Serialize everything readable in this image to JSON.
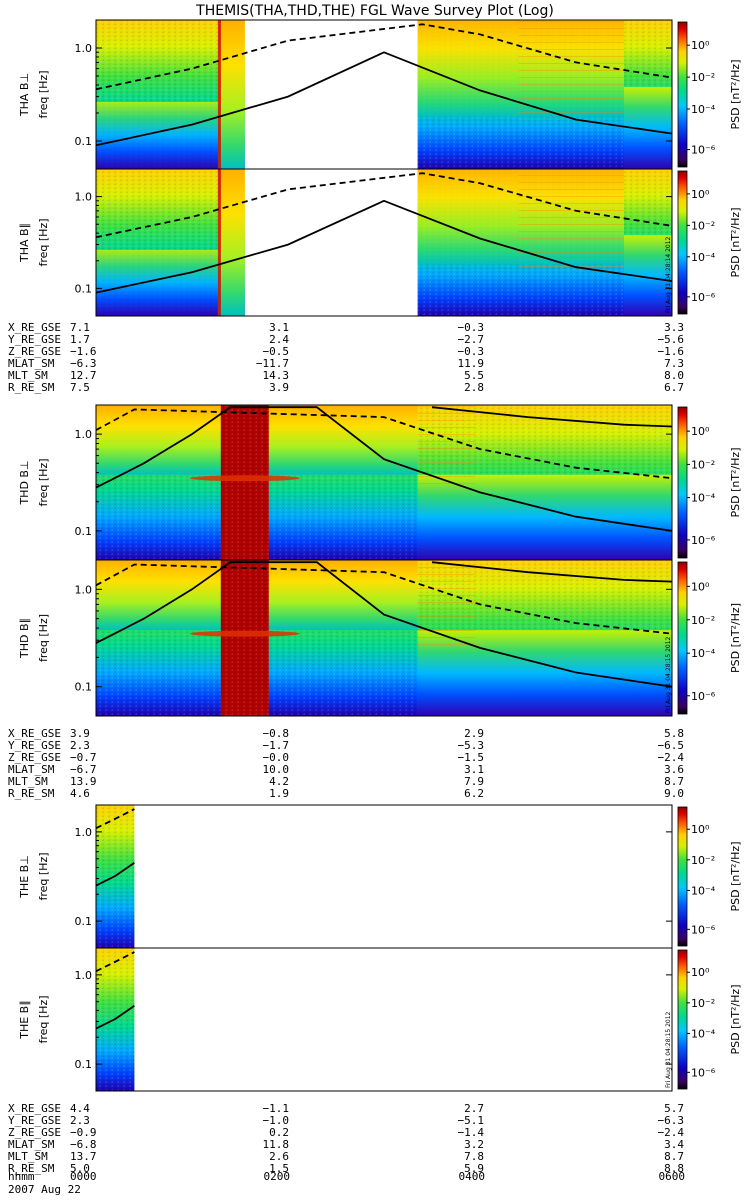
{
  "title": "THEMIS(THA,THD,THE) FGL Wave Survey Plot (Log)",
  "colorbar_label": "PSD [nT²/Hz]",
  "colorbar_ticks": [
    "10⁰",
    "10⁻²",
    "10⁻⁴",
    "10⁻⁶"
  ],
  "ylabel_freq": "freq [Hz]",
  "y_ticks": [
    "1.0",
    "0.1"
  ],
  "time_footer": {
    "hhmm_label": "hhmm",
    "date": "2007 Aug 22",
    "ticks": [
      "0000",
      "0200",
      "0400",
      "0600"
    ]
  },
  "chart_data": [
    {
      "type": "heatmap",
      "title": "THA B⊥",
      "ylabel": "freq [Hz]",
      "yscale": "log",
      "ylim_hz": [
        0.05,
        2.0
      ],
      "xlim_hours": [
        0,
        6
      ],
      "data_coverage_hours": [
        [
          0.0,
          1.55
        ],
        [
          3.35,
          6.0
        ]
      ],
      "color_scale": {
        "min": 1e-06,
        "max": 10,
        "scale": "log"
      },
      "overlays": [
        {
          "style": "solid",
          "points": [
            [
              0,
              0.09
            ],
            [
              1,
              0.15
            ],
            [
              2,
              0.3
            ],
            [
              3,
              0.9
            ],
            [
              4,
              0.35
            ],
            [
              5,
              0.17
            ],
            [
              6,
              0.12
            ]
          ]
        },
        {
          "style": "dashed",
          "points": [
            [
              0,
              0.36
            ],
            [
              1,
              0.6
            ],
            [
              2,
              1.2
            ],
            [
              3.4,
              1.8
            ],
            [
              4,
              1.4
            ],
            [
              5,
              0.7
            ],
            [
              6,
              0.48
            ]
          ]
        }
      ]
    },
    {
      "type": "heatmap",
      "title": "THA B∥",
      "ylabel": "freq [Hz]",
      "yscale": "log",
      "ylim_hz": [
        0.05,
        2.0
      ],
      "xlim_hours": [
        0,
        6
      ],
      "data_coverage_hours": [
        [
          0.0,
          1.55
        ],
        [
          3.35,
          6.0
        ]
      ],
      "color_scale": {
        "min": 1e-06,
        "max": 10,
        "scale": "log"
      },
      "overlays": [
        {
          "style": "solid",
          "points": [
            [
              0,
              0.09
            ],
            [
              1,
              0.15
            ],
            [
              2,
              0.3
            ],
            [
              3,
              0.9
            ],
            [
              4,
              0.35
            ],
            [
              5,
              0.17
            ],
            [
              6,
              0.12
            ]
          ]
        },
        {
          "style": "dashed",
          "points": [
            [
              0,
              0.36
            ],
            [
              1,
              0.6
            ],
            [
              2,
              1.2
            ],
            [
              3.4,
              1.8
            ],
            [
              4,
              1.4
            ],
            [
              5,
              0.7
            ],
            [
              6,
              0.48
            ]
          ]
        }
      ],
      "stamp": "Fri Aug 31 04:28:14 2012"
    },
    {
      "type": "heatmap",
      "title": "THD B⊥",
      "ylabel": "freq [Hz]",
      "yscale": "log",
      "ylim_hz": [
        0.05,
        2.0
      ],
      "xlim_hours": [
        0,
        6
      ],
      "data_coverage_hours": [
        [
          0.0,
          6.0
        ]
      ],
      "color_scale": {
        "min": 1e-06,
        "max": 10,
        "scale": "log"
      },
      "overlays": [
        {
          "style": "solid",
          "points": [
            [
              0,
              0.28
            ],
            [
              0.5,
              0.5
            ],
            [
              1,
              1.0
            ],
            [
              1.4,
              1.9
            ],
            [
              2.3,
              1.9
            ],
            [
              3,
              0.55
            ],
            [
              4,
              0.25
            ],
            [
              5,
              0.14
            ],
            [
              6,
              0.1
            ]
          ]
        },
        {
          "style": "dashed",
          "points": [
            [
              0,
              1.1
            ],
            [
              0.4,
              1.8
            ],
            [
              3,
              1.5
            ],
            [
              4,
              0.7
            ],
            [
              5,
              0.45
            ],
            [
              6,
              0.35
            ]
          ]
        },
        {
          "style": "solid",
          "points": [
            [
              3.5,
              1.9
            ],
            [
              4.5,
              1.5
            ],
            [
              5.5,
              1.25
            ],
            [
              6,
              1.2
            ]
          ]
        }
      ]
    },
    {
      "type": "heatmap",
      "title": "THD B∥",
      "ylabel": "freq [Hz]",
      "yscale": "log",
      "ylim_hz": [
        0.05,
        2.0
      ],
      "xlim_hours": [
        0,
        6
      ],
      "data_coverage_hours": [
        [
          0.0,
          6.0
        ]
      ],
      "color_scale": {
        "min": 1e-06,
        "max": 10,
        "scale": "log"
      },
      "overlays": [
        {
          "style": "solid",
          "points": [
            [
              0,
              0.28
            ],
            [
              0.5,
              0.5
            ],
            [
              1,
              1.0
            ],
            [
              1.4,
              1.9
            ],
            [
              2.3,
              1.9
            ],
            [
              3,
              0.55
            ],
            [
              4,
              0.25
            ],
            [
              5,
              0.14
            ],
            [
              6,
              0.1
            ]
          ]
        },
        {
          "style": "dashed",
          "points": [
            [
              0,
              1.1
            ],
            [
              0.4,
              1.8
            ],
            [
              3,
              1.5
            ],
            [
              4,
              0.7
            ],
            [
              5,
              0.45
            ],
            [
              6,
              0.35
            ]
          ]
        },
        {
          "style": "solid",
          "points": [
            [
              3.5,
              1.9
            ],
            [
              4.5,
              1.5
            ],
            [
              5.5,
              1.25
            ],
            [
              6,
              1.2
            ]
          ]
        }
      ],
      "stamp": "Fri Aug 31 04:28:15 2012"
    },
    {
      "type": "heatmap",
      "title": "THE B⊥",
      "ylabel": "freq [Hz]",
      "yscale": "log",
      "ylim_hz": [
        0.05,
        2.0
      ],
      "xlim_hours": [
        0,
        6
      ],
      "data_coverage_hours": [
        [
          0.0,
          0.4
        ]
      ],
      "color_scale": {
        "min": 1e-06,
        "max": 10,
        "scale": "log"
      },
      "overlays": [
        {
          "style": "solid",
          "points": [
            [
              0,
              0.25
            ],
            [
              0.2,
              0.32
            ],
            [
              0.4,
              0.45
            ]
          ]
        },
        {
          "style": "dashed",
          "points": [
            [
              0,
              1.1
            ],
            [
              0.2,
              1.4
            ],
            [
              0.4,
              1.8
            ]
          ]
        }
      ]
    },
    {
      "type": "heatmap",
      "title": "THE B∥",
      "ylabel": "freq [Hz]",
      "yscale": "log",
      "ylim_hz": [
        0.05,
        2.0
      ],
      "xlim_hours": [
        0,
        6
      ],
      "data_coverage_hours": [
        [
          0.0,
          0.4
        ]
      ],
      "color_scale": {
        "min": 1e-06,
        "max": 10,
        "scale": "log"
      },
      "overlays": [
        {
          "style": "solid",
          "points": [
            [
              0,
              0.25
            ],
            [
              0.2,
              0.32
            ],
            [
              0.4,
              0.45
            ]
          ]
        },
        {
          "style": "dashed",
          "points": [
            [
              0,
              1.1
            ],
            [
              0.2,
              1.4
            ],
            [
              0.4,
              1.8
            ]
          ]
        }
      ],
      "stamp": "Fri Aug 31 04:28:15 2012"
    }
  ],
  "ephemeris": [
    {
      "probe": "THA",
      "rows": [
        {
          "label": "X_RE_GSE",
          "values": [
            "7.1",
            "3.1",
            "−0.3",
            "3.3"
          ]
        },
        {
          "label": "Y_RE_GSE",
          "values": [
            "1.7",
            "2.4",
            "−2.7",
            "−5.6"
          ]
        },
        {
          "label": "Z_RE_GSE",
          "values": [
            "−1.6",
            "−0.5",
            "−0.3",
            "−1.6"
          ]
        },
        {
          "label": "MLAT_SM",
          "values": [
            "−6.3",
            "−11.7",
            "11.9",
            "7.3"
          ]
        },
        {
          "label": "MLT_SM",
          "values": [
            "12.7",
            "14.3",
            "5.5",
            "8.0"
          ]
        },
        {
          "label": "R_RE_SM",
          "values": [
            "7.5",
            "3.9",
            "2.8",
            "6.7"
          ]
        }
      ]
    },
    {
      "probe": "THD",
      "rows": [
        {
          "label": "X_RE_GSE",
          "values": [
            "3.9",
            "−0.8",
            "2.9",
            "5.8"
          ]
        },
        {
          "label": "Y_RE_GSE",
          "values": [
            "2.3",
            "−1.7",
            "−5.3",
            "−6.5"
          ]
        },
        {
          "label": "Z_RE_GSE",
          "values": [
            "−0.7",
            "−0.0",
            "−1.5",
            "−2.4"
          ]
        },
        {
          "label": "MLAT_SM",
          "values": [
            "−6.7",
            "10.0",
            "3.1",
            "3.6"
          ]
        },
        {
          "label": "MLT_SM",
          "values": [
            "13.9",
            "4.2",
            "7.9",
            "8.7"
          ]
        },
        {
          "label": "R_RE_SM",
          "values": [
            "4.6",
            "1.9",
            "6.2",
            "9.0"
          ]
        }
      ]
    },
    {
      "probe": "THE",
      "rows": [
        {
          "label": "X_RE_GSE",
          "values": [
            "4.4",
            "−1.1",
            "2.7",
            "5.7"
          ]
        },
        {
          "label": "Y_RE_GSE",
          "values": [
            "2.3",
            "−1.0",
            "−5.1",
            "−6.3"
          ]
        },
        {
          "label": "Z_RE_GSE",
          "values": [
            "−0.9",
            "0.2",
            "−1.4",
            "−2.4"
          ]
        },
        {
          "label": "MLAT_SM",
          "values": [
            "−6.8",
            "11.8",
            "3.2",
            "3.4"
          ]
        },
        {
          "label": "MLT_SM",
          "values": [
            "13.7",
            "2.6",
            "7.8",
            "8.7"
          ]
        },
        {
          "label": "R_RE_SM",
          "values": [
            "5.0",
            "1.5",
            "5.9",
            "8.8"
          ]
        }
      ]
    }
  ]
}
